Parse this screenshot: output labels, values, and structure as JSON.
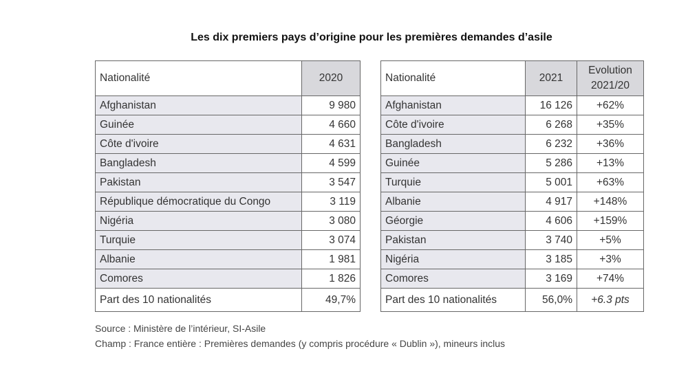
{
  "title": "Les dix premiers pays d’origine pour les premières demandes d’asile",
  "left_table": {
    "headers": [
      "Nationalité",
      "2020"
    ],
    "rows": [
      [
        "Afghanistan",
        "9 980"
      ],
      [
        "Guinée",
        "4 660"
      ],
      [
        "Côte d'ivoire",
        "4 631"
      ],
      [
        "Bangladesh",
        "4 599"
      ],
      [
        "Pakistan",
        "3 547"
      ],
      [
        "République démocratique du Congo",
        "3 119"
      ],
      [
        "Nigéria",
        "3 080"
      ],
      [
        "Turquie",
        "3 074"
      ],
      [
        "Albanie",
        "1 981"
      ],
      [
        "Comores",
        "1 826"
      ]
    ],
    "total": [
      "Part des 10 nationalités",
      "49,7%"
    ]
  },
  "right_table": {
    "headers": [
      "Nationalité",
      "2021",
      "Evolution 2021/20"
    ],
    "rows": [
      [
        "Afghanistan",
        "16 126",
        "+62%"
      ],
      [
        "Côte d'ivoire",
        "6 268",
        "+35%"
      ],
      [
        "Bangladesh",
        "6 232",
        "+36%"
      ],
      [
        "Guinée",
        "5 286",
        "+13%"
      ],
      [
        "Turquie",
        "5 001",
        "+63%"
      ],
      [
        "Albanie",
        "4 917",
        "+148%"
      ],
      [
        "Géorgie",
        "4 606",
        "+159%"
      ],
      [
        "Pakistan",
        "3 740",
        "+5%"
      ],
      [
        "Nigéria",
        "3 185",
        "+3%"
      ],
      [
        "Comores",
        "3 169",
        "+74%"
      ]
    ],
    "total": [
      "Part des 10 nationalités",
      "56,0%",
      "+6.3 pts"
    ]
  },
  "footer": {
    "source": "Source : Ministère de l’intérieur, SI-Asile",
    "scope": "Champ : France entière : Premières demandes (y compris procédure « Dublin »), mineurs inclus"
  }
}
